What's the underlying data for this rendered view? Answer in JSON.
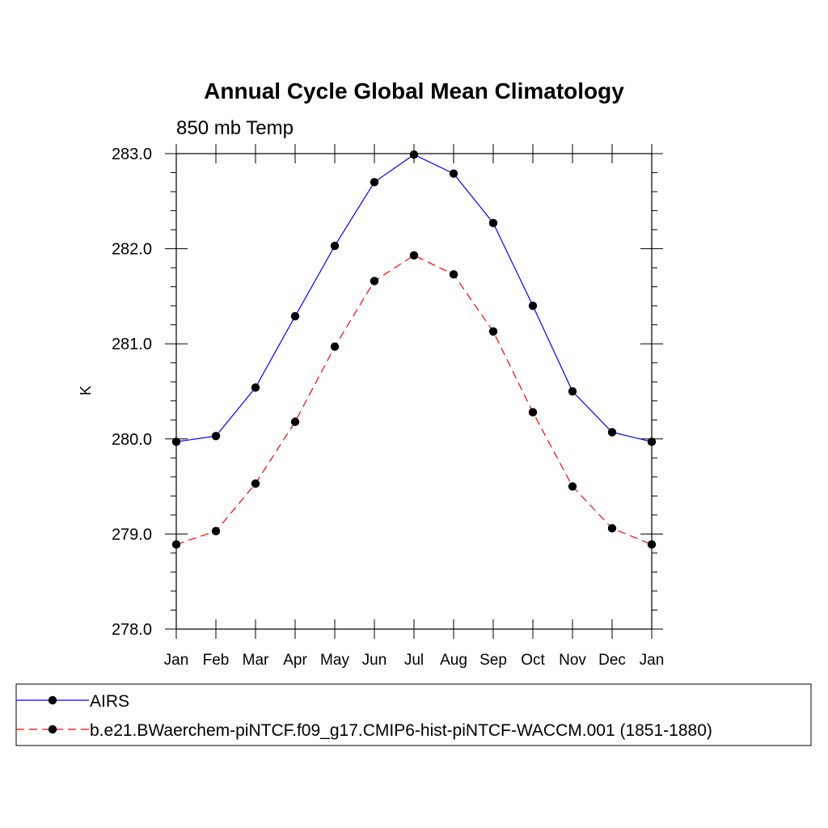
{
  "chart_data": {
    "type": "line",
    "title": "Annual Cycle Global Mean Climatology",
    "subtitle": "850 mb Temp",
    "xlabel": "",
    "ylabel": "K",
    "categories": [
      "Jan",
      "Feb",
      "Mar",
      "Apr",
      "May",
      "Jun",
      "Jul",
      "Aug",
      "Sep",
      "Oct",
      "Nov",
      "Dec",
      "Jan"
    ],
    "ylim": [
      278.0,
      283.0
    ],
    "yticks": [
      "278.0",
      "279.0",
      "280.0",
      "281.0",
      "282.0",
      "283.0"
    ],
    "series": [
      {
        "name": "AIRS",
        "color": "#0000ff",
        "style": "solid",
        "values": [
          279.97,
          280.03,
          280.54,
          281.29,
          282.03,
          282.7,
          282.99,
          282.79,
          282.27,
          281.4,
          280.5,
          280.07,
          279.97
        ]
      },
      {
        "name": "b.e21.BWaerchem-piNTCF.f09_g17.CMIP6-hist-piNTCF-WACCM.001 (1851-1880)",
        "color": "#ff0000",
        "style": "dashed",
        "values": [
          278.89,
          279.03,
          279.53,
          280.18,
          280.97,
          281.66,
          281.93,
          281.73,
          281.13,
          280.28,
          279.5,
          279.06,
          278.89
        ]
      }
    ],
    "marker_color": "#000000",
    "grid": false,
    "legend_position": "bottom"
  }
}
